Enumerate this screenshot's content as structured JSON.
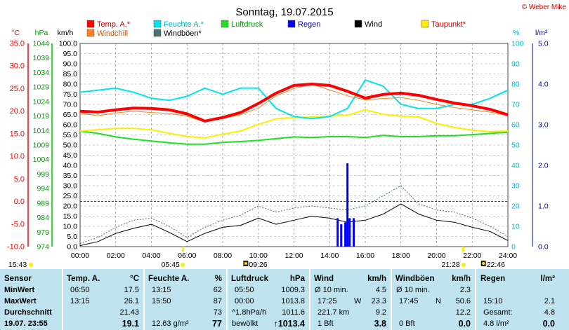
{
  "chart_data": {
    "type": "line",
    "title": "Sonntag, 19.07.2015",
    "copyright": "© Weber Mike",
    "legend": [
      {
        "name": "Temp. A.*",
        "color": "#ff0000"
      },
      {
        "name": "Windchill",
        "color": "#ff8020"
      },
      {
        "name": "Feuchte A.*",
        "color": "#00e5ee"
      },
      {
        "name": "Windböen*",
        "color": "#4a7070"
      },
      {
        "name": "Luftdruck",
        "color": "#22dd22"
      },
      {
        "name": "Regen",
        "color": "#0000ff"
      },
      {
        "name": "Wind",
        "color": "#000000"
      },
      {
        "name": "Taupunkt*",
        "color": "#ffee00"
      }
    ],
    "axes": {
      "temp": {
        "unit": "°C",
        "ticks": [
          "35.0",
          "30.0",
          "25.0",
          "20.0",
          "15.0",
          "10.0",
          "5.0",
          "0.0",
          "-5.0",
          "-10.0"
        ],
        "range": [
          -10,
          35
        ],
        "color": "#ff0000"
      },
      "pressure": {
        "unit": "hPa",
        "ticks": [
          "1044",
          "1039",
          "1034",
          "1029",
          "1024",
          "1019",
          "1014",
          "1009",
          "1004",
          "999",
          "994",
          "989",
          "984",
          "979",
          "974"
        ],
        "range": [
          974,
          1044
        ],
        "color": "#00aa00"
      },
      "wind": {
        "unit": "km/h",
        "ticks": [
          "100.0",
          "95.0",
          "90.0",
          "85.0",
          "80.0",
          "75.0",
          "70.0",
          "65.0",
          "60.0",
          "55.0",
          "50.0",
          "45.0",
          "40.0",
          "35.0",
          "30.0",
          "25.0",
          "20.0",
          "15.0",
          "10.0",
          "5.0",
          "0.0"
        ],
        "range": [
          0,
          100
        ]
      },
      "humidity": {
        "unit": "%",
        "ticks": [
          "100",
          "90",
          "80",
          "70",
          "60",
          "50",
          "40",
          "30",
          "20",
          "10",
          "0"
        ],
        "range": [
          0,
          100
        ],
        "color": "#00c8d0"
      },
      "rain": {
        "unit": "l/m²",
        "ticks": [
          "5.0",
          "4.0",
          "3.0",
          "2.0",
          "1.0",
          "0.0"
        ],
        "range": [
          0,
          5
        ],
        "color": "#0000aa"
      },
      "x": {
        "ticks": [
          "00:00",
          "02:00",
          "04:00",
          "06:00",
          "08:00",
          "10:00",
          "12:00",
          "14:00",
          "16:00",
          "18:00",
          "20:00",
          "22:00",
          "24:00"
        ],
        "range": [
          0,
          24
        ]
      }
    },
    "sun_markers": {
      "sunrise": "05:45",
      "sunset": "21:28",
      "moonrise": "09:26",
      "moonset": "22:46",
      "daylength": "15:43"
    },
    "series": [
      {
        "key": "temp",
        "name": "Temp. A.*",
        "axis": "temp",
        "x": [
          0,
          1,
          2,
          3,
          4,
          5,
          6,
          7,
          8,
          9,
          10,
          11,
          12,
          13,
          14,
          15,
          16,
          17,
          18,
          19,
          20,
          21,
          22,
          23,
          24
        ],
        "values": [
          20.0,
          19.8,
          20.3,
          20.7,
          20.6,
          20.3,
          19.4,
          17.8,
          18.6,
          19.7,
          21.7,
          24.0,
          25.7,
          26.0,
          25.7,
          24.4,
          22.9,
          23.7,
          24.0,
          23.5,
          22.6,
          21.8,
          21.2,
          20.4,
          19.2
        ]
      },
      {
        "key": "windchill",
        "name": "Windchill",
        "axis": "temp",
        "x": [
          0,
          1,
          2,
          3,
          4,
          5,
          6,
          7,
          8,
          9,
          10,
          11,
          12,
          13,
          14,
          15,
          16,
          17,
          18,
          19,
          20,
          21,
          22,
          23,
          24
        ],
        "values": [
          19.5,
          19.0,
          19.6,
          20.0,
          19.7,
          19.5,
          18.9,
          17.6,
          18.4,
          19.2,
          20.7,
          23.4,
          25.0,
          26.0,
          24.7,
          23.4,
          22.5,
          22.8,
          23.0,
          22.4,
          21.5,
          20.8,
          20.3,
          19.8,
          19.0
        ]
      },
      {
        "key": "humidity",
        "name": "Feuchte A.*",
        "axis": "humidity",
        "x": [
          0,
          1,
          2,
          3,
          4,
          5,
          6,
          7,
          8,
          9,
          10,
          11,
          12,
          13,
          14,
          15,
          16,
          17,
          18,
          19,
          20,
          21,
          22,
          23,
          24
        ],
        "values": [
          76,
          77,
          78,
          76,
          73,
          72,
          74,
          78,
          75,
          78,
          78,
          68,
          64,
          63,
          64,
          68,
          82,
          79,
          70,
          68,
          68,
          70,
          70,
          73,
          77
        ]
      },
      {
        "key": "dewpoint",
        "name": "Taupunkt*",
        "axis": "temp",
        "x": [
          0,
          1,
          2,
          3,
          4,
          5,
          6,
          7,
          8,
          9,
          10,
          11,
          12,
          13,
          14,
          15,
          16,
          17,
          18,
          19,
          20,
          21,
          22,
          23,
          24
        ],
        "values": [
          15.6,
          15.9,
          16.2,
          16.2,
          15.9,
          15.1,
          14.4,
          14.1,
          14.9,
          15.6,
          17.1,
          18.3,
          18.6,
          18.7,
          18.9,
          19.1,
          20.3,
          19.3,
          18.9,
          18.7,
          17.3,
          16.4,
          15.8,
          15.5,
          15.6
        ]
      },
      {
        "key": "pressure",
        "name": "Luftdruck",
        "axis": "pressure",
        "x": [
          0,
          1,
          2,
          3,
          4,
          5,
          6,
          7,
          8,
          9,
          10,
          11,
          12,
          13,
          14,
          15,
          16,
          17,
          18,
          19,
          20,
          21,
          22,
          23,
          24
        ],
        "values": [
          1013.8,
          1013.0,
          1011.8,
          1011.0,
          1010.4,
          1009.8,
          1009.3,
          1009.3,
          1009.9,
          1010.2,
          1010.6,
          1011.2,
          1011.8,
          1011.6,
          1011.9,
          1011.9,
          1011.6,
          1012.3,
          1011.9,
          1011.9,
          1012.2,
          1012.2,
          1012.6,
          1013.0,
          1013.4
        ]
      },
      {
        "key": "wind",
        "name": "Wind",
        "axis": "wind",
        "x": [
          0,
          1,
          2,
          3,
          4,
          5,
          6,
          7,
          8,
          9,
          10,
          11,
          12,
          13,
          14,
          15,
          16,
          17,
          18,
          19,
          20,
          21,
          22,
          23,
          24
        ],
        "values": [
          0.5,
          2.5,
          6.5,
          9.0,
          11.0,
          7.0,
          2.5,
          6.5,
          9.5,
          10.5,
          14.0,
          11.0,
          13.0,
          15.0,
          14.0,
          12.0,
          13.0,
          16.0,
          21.0,
          16.0,
          13.0,
          12.0,
          9.5,
          7.5,
          3.0
        ]
      },
      {
        "key": "gust",
        "name": "Windböen*",
        "axis": "wind",
        "x": [
          0,
          1,
          2,
          3,
          4,
          5,
          6,
          7,
          8,
          9,
          10,
          11,
          12,
          13,
          14,
          15,
          16,
          17,
          18,
          19,
          20,
          21,
          22,
          23,
          24
        ],
        "values": [
          1.5,
          4.5,
          9.5,
          13.0,
          14.0,
          10.0,
          4.5,
          9.5,
          13.0,
          15.5,
          20.0,
          17.0,
          19.0,
          20.0,
          19.0,
          18.0,
          20.0,
          25.0,
          30.0,
          21.0,
          18.0,
          17.0,
          14.0,
          10.0,
          5.0
        ]
      }
    ],
    "rain_bars": {
      "x": [
        14.45,
        14.65,
        14.88,
        15.0,
        15.12,
        15.35
      ],
      "values": [
        0.7,
        0.55,
        0.6,
        2.05,
        0.7,
        0.7
      ]
    }
  },
  "stats": {
    "sensor": {
      "header": "Sensor",
      "minwert": "MinWert",
      "maxwert": "MaxWert",
      "durchschnitt": "Durchschnitt",
      "date": "19.07. 23:55"
    },
    "temp": {
      "header": "Temp. A.",
      "unit": "°C",
      "min_time": "06:50",
      "min_val": "17.5",
      "max_time": "13:15",
      "max_val": "26.1",
      "avg": "21.43",
      "current": "19.1"
    },
    "humidity": {
      "header": "Feuchte A.",
      "unit": "%",
      "min_time": "13:15",
      "min_val": "62",
      "max_time": "15:50",
      "max_val": "87",
      "avg": "73",
      "abs": "12.63 g/m³",
      "current": "77"
    },
    "pressure": {
      "header": "Luftdruck",
      "unit": "hPa",
      "min_time": "05:50",
      "min_val": "1009.3",
      "max_time": "00:00",
      "max_val": "1013.8",
      "trend": "^1.8hPa/h",
      "avg": "1011.6",
      "weather": "bewölkt",
      "current": "1013.4"
    },
    "wind": {
      "header": "Wind",
      "unit": "km/h",
      "r1_label": "Ø 10 min.",
      "r1_val": "4.5",
      "r2_time": "17:25",
      "r2_dir": "W",
      "r2_val": "23.3",
      "r3_label": "221.7 km",
      "r3_val": "9.2",
      "r4_label": "1 Bft",
      "current": "3.8"
    },
    "gust": {
      "header": "Windböen",
      "unit": "km/h",
      "r1_label": "Ø 10 min.",
      "r1_val": "2.3",
      "r2_time": "17:45",
      "r2_dir": "N",
      "r2_val": "50.6",
      "r3_val": "12.2",
      "r4_label": "0 Bft",
      "current": "0.0"
    },
    "rain": {
      "header": "Regen",
      "unit": "l/m²",
      "r2_time": "15:10",
      "r2_val": "2.1",
      "r3_label": "Gesamt:",
      "r3_val": "4.8",
      "r4_label": "4.8 l/m²",
      "current": "0.0"
    }
  }
}
